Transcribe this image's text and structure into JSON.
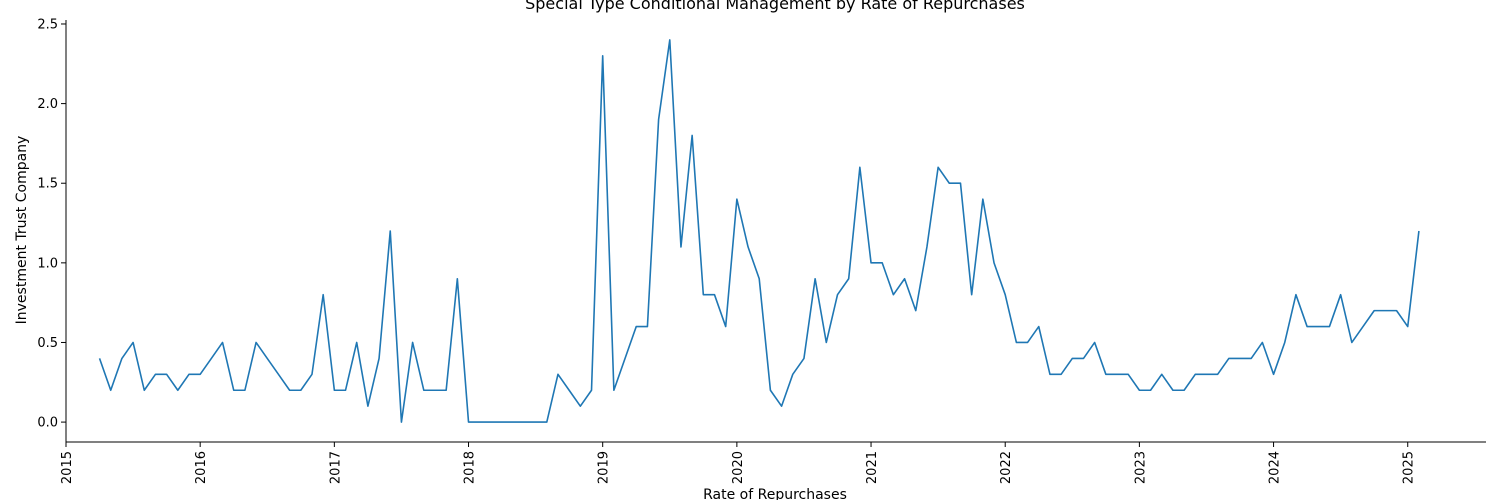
{
  "chart_data": {
    "type": "line",
    "title": "Special Type Conditional Management by Rate of Repurchases",
    "xlabel": "Rate of Repurchases",
    "ylabel": "Investment Trust Company",
    "xlim": [
      "2015-01-01",
      "2025-08-01"
    ],
    "ylim": [
      -0.125,
      2.525
    ],
    "x_ticks": [
      "2015",
      "2016",
      "2017",
      "2018",
      "2019",
      "2020",
      "2021",
      "2022",
      "2023",
      "2024",
      "2025"
    ],
    "y_ticks": [
      "0.0",
      "0.5",
      "1.0",
      "1.5",
      "2.0",
      "2.5"
    ],
    "grid": false,
    "line_color": "#1f77b4",
    "series": [
      {
        "x": [
          "2015-04",
          "2015-05",
          "2015-06",
          "2015-07",
          "2015-08",
          "2015-09",
          "2015-10",
          "2015-11",
          "2015-12",
          "2016-01",
          "2016-02",
          "2016-03",
          "2016-04",
          "2016-05",
          "2016-06",
          "2016-07",
          "2016-08",
          "2016-09",
          "2016-10",
          "2016-11",
          "2016-12",
          "2017-01",
          "2017-02",
          "2017-03",
          "2017-04",
          "2017-05",
          "2017-06",
          "2017-07",
          "2017-08",
          "2017-09",
          "2017-10",
          "2017-11",
          "2017-12",
          "2018-01",
          "2018-02",
          "2018-03",
          "2018-04",
          "2018-05",
          "2018-06",
          "2018-07",
          "2018-08",
          "2018-09",
          "2018-10",
          "2018-11",
          "2018-12",
          "2019-01",
          "2019-02",
          "2019-03",
          "2019-04",
          "2019-05",
          "2019-06",
          "2019-07",
          "2019-08",
          "2019-09",
          "2019-10",
          "2019-11",
          "2019-12",
          "2020-01",
          "2020-02",
          "2020-03",
          "2020-04",
          "2020-05",
          "2020-06",
          "2020-07",
          "2020-08",
          "2020-09",
          "2020-10",
          "2020-11",
          "2020-12",
          "2021-01",
          "2021-02",
          "2021-03",
          "2021-04",
          "2021-05",
          "2021-06",
          "2021-07",
          "2021-08",
          "2021-09",
          "2021-10",
          "2021-11",
          "2021-12",
          "2022-01",
          "2022-02",
          "2022-03",
          "2022-04",
          "2022-05",
          "2022-06",
          "2022-07",
          "2022-08",
          "2022-09",
          "2022-10",
          "2022-11",
          "2022-12",
          "2023-01",
          "2023-02",
          "2023-03",
          "2023-04",
          "2023-05",
          "2023-06",
          "2023-07",
          "2023-08",
          "2023-09",
          "2023-10",
          "2023-11",
          "2023-12",
          "2024-01",
          "2024-02",
          "2024-03",
          "2024-04",
          "2024-05",
          "2024-06",
          "2024-07",
          "2024-08",
          "2024-09",
          "2024-10",
          "2024-11",
          "2024-12",
          "2025-01",
          "2025-02"
        ],
        "y": [
          0.4,
          0.2,
          0.4,
          0.5,
          0.2,
          0.3,
          0.3,
          0.2,
          0.3,
          0.3,
          0.4,
          0.5,
          0.2,
          0.2,
          0.5,
          0.4,
          0.3,
          0.2,
          0.2,
          0.3,
          0.8,
          0.2,
          0.2,
          0.5,
          0.1,
          0.4,
          1.2,
          0.0,
          0.5,
          0.2,
          0.2,
          0.2,
          0.9,
          0.0,
          0.0,
          0.0,
          0.0,
          0.0,
          0.0,
          0.0,
          0.0,
          0.3,
          0.2,
          0.1,
          0.2,
          2.3,
          0.2,
          0.4,
          0.6,
          0.6,
          1.9,
          2.4,
          1.1,
          1.8,
          0.8,
          0.8,
          0.6,
          1.4,
          1.1,
          0.9,
          0.2,
          0.1,
          0.3,
          0.4,
          0.9,
          0.5,
          0.8,
          0.9,
          1.6,
          1.0,
          1.0,
          0.8,
          0.9,
          0.7,
          1.1,
          1.6,
          1.5,
          1.5,
          0.8,
          1.4,
          1.0,
          0.8,
          0.5,
          0.5,
          0.6,
          0.3,
          0.3,
          0.4,
          0.4,
          0.5,
          0.3,
          0.3,
          0.3,
          0.2,
          0.2,
          0.3,
          0.2,
          0.2,
          0.3,
          0.3,
          0.3,
          0.4,
          0.4,
          0.4,
          0.5,
          0.3,
          0.5,
          0.8,
          0.6,
          0.6,
          0.6,
          0.8,
          0.5,
          0.6,
          0.7,
          0.7,
          0.7,
          0.6,
          1.2
        ]
      }
    ]
  }
}
